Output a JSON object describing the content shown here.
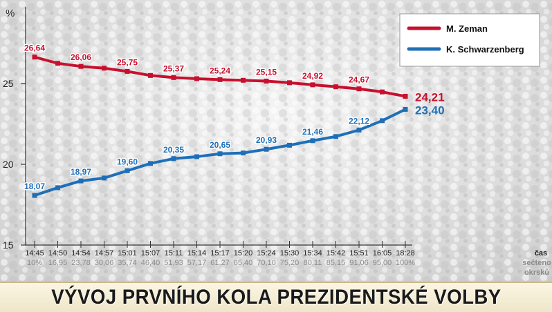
{
  "chart_data": {
    "type": "line",
    "title": "VÝVOJ PRVNÍHO KOLA PREZIDENTSKÉ VOLBY",
    "ylabel": "%",
    "xlabel": "čas",
    "secondary_xlabel": "sečteno okrsků",
    "ylim": [
      15,
      28
    ],
    "yticks": [
      15,
      20,
      25
    ],
    "grid": false,
    "legend_position": "top-right",
    "categories": [
      "14:45",
      "14:50",
      "14:54",
      "14:57",
      "15:01",
      "15:07",
      "15:11",
      "15:14",
      "15:17",
      "15:20",
      "15:24",
      "15:30",
      "15:34",
      "15:42",
      "15:51",
      "16:05",
      "18:28"
    ],
    "counted": [
      "10%",
      "16,95",
      "23,78",
      "30,06",
      "35,74",
      "46,40",
      "51,93",
      "57,17",
      "61,27",
      "65,40",
      "70,10",
      "75,20",
      "80,11",
      "85,15",
      "91,06",
      "95,00",
      "100%"
    ],
    "series": [
      {
        "name": "M. Zeman",
        "color": "#c8102e",
        "values": [
          26.64,
          26.25,
          26.06,
          25.95,
          25.75,
          25.5,
          25.37,
          25.3,
          25.24,
          25.2,
          25.15,
          25.05,
          24.92,
          24.8,
          24.67,
          24.48,
          24.21
        ],
        "labels": [
          "26,64",
          null,
          "26,06",
          null,
          "25,75",
          null,
          "25,37",
          null,
          "25,24",
          null,
          "25,15",
          null,
          "24,92",
          null,
          "24,67",
          null,
          "24,21"
        ]
      },
      {
        "name": "K. Schwarzenberg",
        "color": "#1f6fb8",
        "values": [
          18.07,
          18.55,
          18.97,
          19.15,
          19.6,
          20.05,
          20.35,
          20.47,
          20.65,
          20.7,
          20.93,
          21.18,
          21.46,
          21.72,
          22.12,
          22.7,
          23.4
        ],
        "labels": [
          "18,07",
          null,
          "18,97",
          null,
          "19,60",
          null,
          "20,35",
          null,
          "20,65",
          null,
          "20,93",
          null,
          "21,46",
          null,
          "22,12",
          null,
          "23,40"
        ]
      }
    ]
  }
}
